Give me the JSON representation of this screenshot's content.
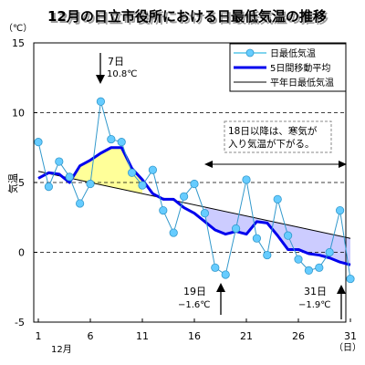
{
  "chart_data": {
    "type": "line",
    "title": "12月の日立市役所における日最低気温の推移",
    "unit_label": "（℃）",
    "ylabel": "気温",
    "x_unit_label": "（日）",
    "month_label": "12月",
    "xlim": [
      1,
      31
    ],
    "ylim": [
      -5,
      15
    ],
    "xticks": [
      1,
      6,
      11,
      16,
      21,
      26,
      31
    ],
    "yticks": [
      -5,
      0,
      5,
      10,
      15
    ],
    "grid": "horizontal dashed",
    "legend_position": "top-right",
    "series": [
      {
        "name": "日最低気温",
        "color": "#66ccff",
        "x": [
          1,
          2,
          3,
          4,
          5,
          6,
          7,
          8,
          9,
          10,
          11,
          12,
          13,
          14,
          15,
          16,
          17,
          18,
          19,
          20,
          21,
          22,
          23,
          24,
          25,
          26,
          27,
          28,
          29,
          30,
          31
        ],
        "values": [
          7.9,
          4.7,
          6.5,
          5.4,
          3.5,
          4.9,
          10.8,
          8.1,
          7.9,
          5.7,
          4.8,
          5.9,
          3.0,
          1.4,
          4.0,
          4.9,
          2.8,
          -1.1,
          -1.6,
          1.7,
          5.2,
          1.0,
          -0.2,
          3.8,
          1.2,
          -0.5,
          -1.3,
          -1.1,
          0.0,
          3.0,
          -1.9
        ]
      },
      {
        "name": "5日間移動平均",
        "color": "#0000ee",
        "x": [
          1,
          2,
          3,
          4,
          5,
          6,
          7,
          8,
          9,
          10,
          11,
          12,
          13,
          14,
          15,
          16,
          17,
          18,
          19,
          20,
          21,
          22,
          23,
          24,
          25,
          26,
          27,
          28,
          29,
          30,
          31
        ],
        "values": [
          5.3,
          5.7,
          5.6,
          5.0,
          6.2,
          6.6,
          7.1,
          7.5,
          7.5,
          6.0,
          5.2,
          4.2,
          3.8,
          3.8,
          3.2,
          2.8,
          2.2,
          1.6,
          1.3,
          1.5,
          1.3,
          2.2,
          2.1,
          1.2,
          0.2,
          0.2,
          -0.1,
          -0.2,
          -0.4,
          -0.7,
          -0.9
        ]
      },
      {
        "name": "平年日最低気温",
        "color": "#000000",
        "x": [
          1,
          31
        ],
        "values": [
          5.8,
          1.0
        ]
      }
    ],
    "annotations": [
      {
        "day": "7日",
        "value": "10.8℃"
      },
      {
        "day": "19日",
        "value": "−1.6℃"
      },
      {
        "day": "31日",
        "value": "−1.9℃"
      },
      {
        "text1": "18日以降は、寒気が",
        "text2": "入り気温が下がる。"
      }
    ],
    "colors": {
      "warm_fill": "#ffff99",
      "cold_fill": "#ccccff",
      "grid": "#000000",
      "arrow": "#000000"
    }
  }
}
